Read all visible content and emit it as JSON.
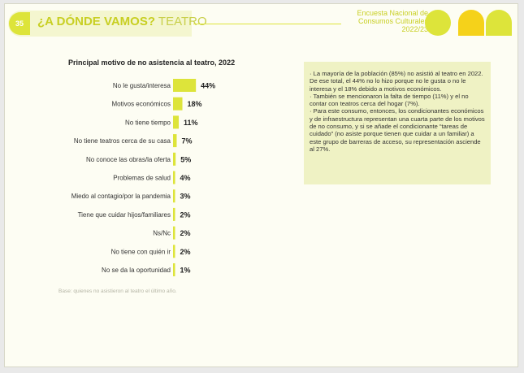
{
  "header": {
    "page_number": "35",
    "title_bold": "¿A DÓNDE VAMOS?",
    "title_light": "TEATRO",
    "survey_lines": [
      "Encuesta Nacional de",
      "Consumos Culturales",
      "2022/23"
    ]
  },
  "colors": {
    "accent": "#dde43a",
    "accent_yellow": "#f5d21a",
    "accent_dark": "#c8cf23"
  },
  "chart_data": {
    "type": "bar",
    "orientation": "horizontal",
    "title": "Principal motivo de no asistencia al teatro, 2022",
    "categories": [
      "No le gusta/interesa",
      "Motivos económicos",
      "No tiene tiempo",
      "No tiene teatros cerca de su casa",
      "No conoce las obras/la oferta",
      "Problemas de salud",
      "Miedo al contagio/por la pandemia",
      "Tiene que cuidar hijos/familiares",
      "Ns/Nc",
      "No tiene con quién ir",
      "No se da la oportunidad"
    ],
    "values": [
      44,
      18,
      11,
      7,
      5,
      4,
      3,
      2,
      2,
      2,
      1
    ],
    "value_labels": [
      "44%",
      "18%",
      "11%",
      "7%",
      "5%",
      "4%",
      "3%",
      "2%",
      "2%",
      "2%",
      "1%"
    ],
    "unit": "%",
    "bar_color": "#dde43a"
  },
  "source_note": "Base: quienes no asistieron al teatro el último año.",
  "notes": [
    "· La mayoría de la población (85%) no asistió al teatro en 2022. De ese total, el 44% no lo hizo porque no le gusta o no le interesa y el 18% debido a motivos económicos.",
    "· También se mencionaron la falta de tiempo (11%) y el no contar con teatros cerca del hogar (7%).",
    "· Para este consumo, entonces, los condicionantes económicos y de infraestructura representan una cuarta parte de los motivos de no consumo, y si se añade el condicionante “tareas de cuidado” (no asiste porque tienen que cuidar a un familiar) a este grupo de barreras de acceso, su representación asciende al 27%."
  ]
}
